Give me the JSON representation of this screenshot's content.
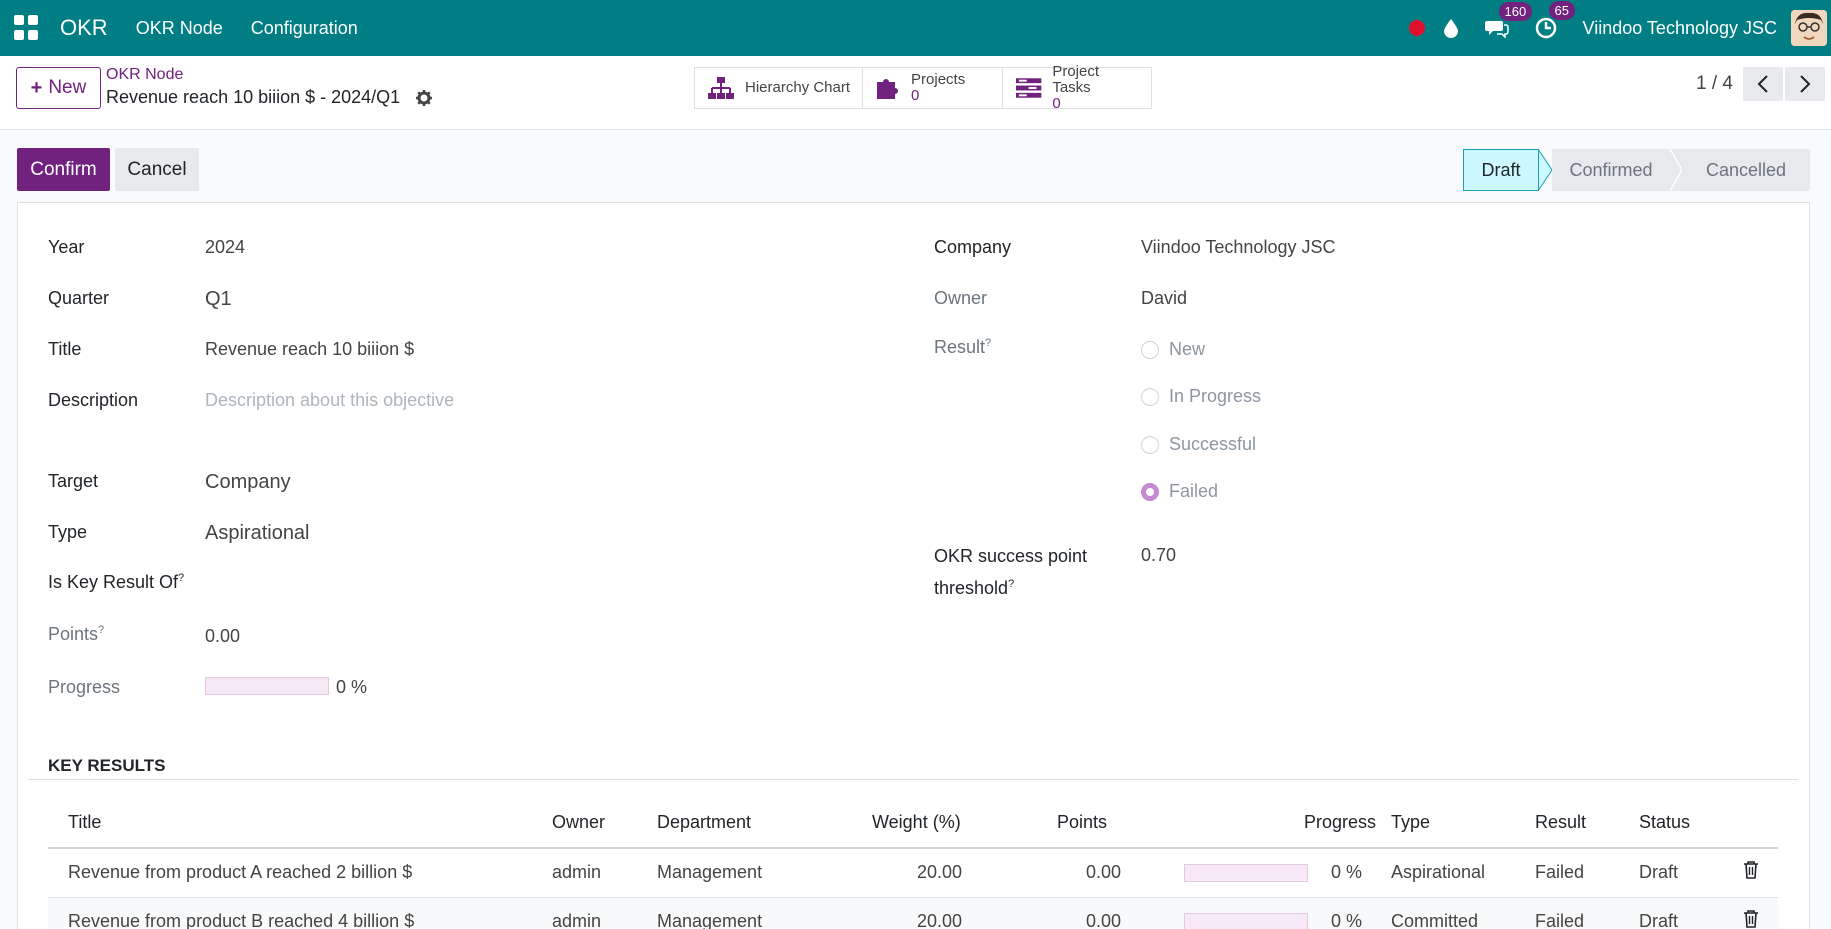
{
  "navbar": {
    "brand": "OKR",
    "menu": [
      "OKR Node",
      "Configuration"
    ],
    "messages_badge": "160",
    "activities_badge": "65",
    "company": "Viindoo Technology JSC"
  },
  "control": {
    "new_label": "New",
    "breadcrumb_parent": "OKR Node",
    "breadcrumb_current": "Revenue reach 10 biiion $ - 2024/Q1",
    "smart_buttons": {
      "hierarchy": "Hierarchy Chart",
      "projects_label": "Projects",
      "projects_count": "0",
      "tasks_label": "Project Tasks",
      "tasks_count": "0"
    },
    "pager": "1 / 4"
  },
  "actions": {
    "confirm": "Confirm",
    "cancel": "Cancel"
  },
  "stages": [
    "Draft",
    "Confirmed",
    "Cancelled"
  ],
  "form": {
    "year_label": "Year",
    "year": "2024",
    "quarter_label": "Quarter",
    "quarter": "Q1",
    "title_label": "Title",
    "title": "Revenue reach 10 biiion $",
    "description_label": "Description",
    "description_placeholder": "Description about this objective",
    "target_label": "Target",
    "target": "Company",
    "type_label": "Type",
    "type": "Aspirational",
    "key_result_of_label": "Is Key Result Of",
    "points_label": "Points",
    "points": "0.00",
    "progress_label": "Progress",
    "progress": "0 %",
    "progress_fraction": 0,
    "company_label": "Company",
    "company": "Viindoo Technology JSC",
    "owner_label": "Owner",
    "owner": "David",
    "result_label": "Result",
    "result_options": [
      "New",
      "In Progress",
      "Successful",
      "Failed"
    ],
    "result_selected": "Failed",
    "threshold_label_1": "OKR success point",
    "threshold_label_2": "threshold",
    "threshold": "0.70",
    "help_mark": "?"
  },
  "key_results": {
    "section_title": "KEY RESULTS",
    "columns": [
      "Title",
      "Owner",
      "Department",
      "Weight (%)",
      "Points",
      "Progress",
      "Type",
      "Result",
      "Status"
    ],
    "rows": [
      {
        "title": "Revenue from product A reached 2 billion $",
        "owner": "admin",
        "department": "Management",
        "weight": "20.00",
        "points": "0.00",
        "progress": "0 %",
        "type": "Aspirational",
        "result": "Failed",
        "status": "Draft"
      },
      {
        "title": "Revenue from product B reached 4 billion $",
        "owner": "admin",
        "department": "Management",
        "weight": "20.00",
        "points": "0.00",
        "progress": "0 %",
        "type": "Committed",
        "result": "Failed",
        "status": "Draft"
      }
    ]
  },
  "colors": {
    "navbar": "#017e84",
    "primary": "#71227f",
    "active_stage": "#ccf8ff"
  }
}
